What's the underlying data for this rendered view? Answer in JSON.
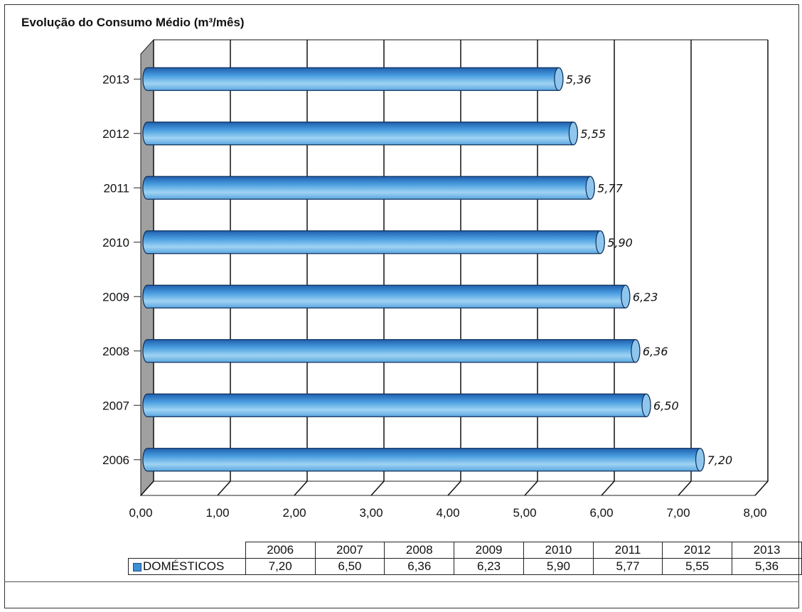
{
  "chart_data": {
    "type": "bar",
    "orientation": "horizontal",
    "title": "Evolução do Consumo Médio (m³/mês)",
    "categories": [
      "2013",
      "2012",
      "2011",
      "2010",
      "2009",
      "2008",
      "2007",
      "2006"
    ],
    "values": [
      5.36,
      5.55,
      5.77,
      5.9,
      6.23,
      6.36,
      6.5,
      7.2
    ],
    "value_labels": [
      "5,36",
      "5,55",
      "5,77",
      "5,90",
      "6,23",
      "6,36",
      "6,50",
      "7,20"
    ],
    "series_name": "DOMÉSTICOS",
    "xlim": [
      0,
      8
    ],
    "x_ticks": [
      "0,00",
      "1,00",
      "2,00",
      "3,00",
      "4,00",
      "5,00",
      "6,00",
      "7,00",
      "8,00"
    ],
    "grid": true,
    "style": "3D cylinder"
  },
  "data_table": {
    "years": [
      "2006",
      "2007",
      "2008",
      "2009",
      "2010",
      "2011",
      "2012",
      "2013"
    ],
    "series_label": "DOMÉSTICOS",
    "values": [
      "7,20",
      "6,50",
      "6,36",
      "6,23",
      "5,90",
      "5,77",
      "5,55",
      "5,36"
    ]
  },
  "colors": {
    "bar_dark": "#1f5fae",
    "bar_light": "#9fd3f3",
    "wall": "#a0a0a0"
  }
}
